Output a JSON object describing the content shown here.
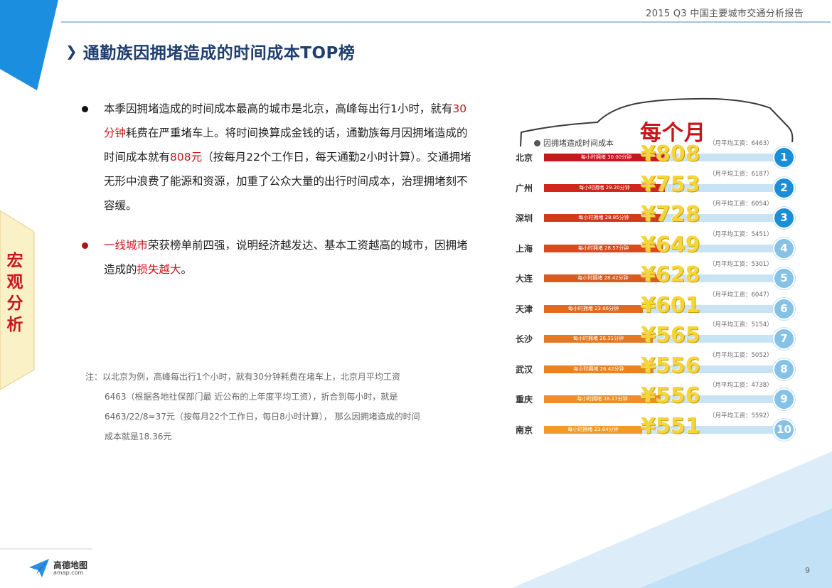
{
  "report_title": "2015 Q3 中国主要城市交通分析报告",
  "slide_title": "通勤族因拥堵造成的时间成本TOP榜",
  "side_tab": [
    "宏",
    "观",
    "分",
    "析"
  ],
  "bullet1": {
    "p1": "本季因拥堵造成的时间成本最高的城市是北京，高峰每出行1小时，就有",
    "h1": "30分钟",
    "p2": "耗费在严重堵车上。将时间换算成金钱的话，通勤族每月因拥堵造成的时间成本就有",
    "h2": "808元",
    "p3": "（按每月22个工作日，每天通勤2小时计算）。交通拥堵无形中浪费了能源和资源，加重了公众大量的出行时间成本，治理拥堵刻不容缓。"
  },
  "bullet2": {
    "h1": "一线城市",
    "p1": "荣获榜单前四强，说明经济越发达、基本工资越高的城市，因拥堵造成的",
    "h2": "损失越大",
    "p2": "。"
  },
  "note": {
    "line1": "注：以北京为例，高峰每出行1个小时，就有30分钟耗费在堵车上，北京月平均工资",
    "line2": "6463（根据各地社保部门最 近公布的上年度平均工资），折合到每小时，就是",
    "line3": "6463/22/8=37元（按每月22个工作日，每日8小时计算）， 那么因拥堵造成的时间",
    "line4": "成本就是18.36元"
  },
  "legend_label": "因拥堵造成时间成本",
  "monthly_label": "每个月",
  "fill_prefix": "每小时拥堵",
  "fill_suffix": "分钟",
  "salary_prefix": "（月平均工资：",
  "salary_suffix": "）",
  "currency_symbol": "¥",
  "colors": {
    "title": "#1e3f6f",
    "highlight": "#c8161d",
    "rank_bright": "#1a8fd8",
    "rank_faded": "#86c1e6",
    "bar_track": "#c7e3f4"
  },
  "chart_data": {
    "type": "bar",
    "title": "",
    "categories": [
      "北京",
      "广州",
      "深圳",
      "上海",
      "大连",
      "天津",
      "长沙",
      "武汉",
      "重庆",
      "南京"
    ],
    "series": [
      {
        "name": "每小时拥堵（分钟）",
        "values": [
          30.0,
          29.2,
          28.85,
          28.57,
          28.42,
          23.86,
          26.31,
          26.42,
          28.17,
          23.64
        ]
      },
      {
        "name": "每个月时间成本（元）",
        "values": [
          808,
          753,
          728,
          649,
          628,
          601,
          565,
          556,
          556,
          551
        ]
      },
      {
        "name": "月平均工资",
        "values": [
          6463,
          6187,
          6054,
          5451,
          5301,
          6047,
          5154,
          5052,
          4738,
          5592
        ]
      }
    ],
    "ranks": [
      1,
      2,
      3,
      4,
      5,
      6,
      7,
      8,
      9,
      10
    ],
    "xlim": [
      0,
      60
    ],
    "grid": false,
    "legend": "top-left"
  },
  "footer": {
    "logo_text": "高德地图",
    "logo_url": "amap.com",
    "page_number": "9"
  }
}
